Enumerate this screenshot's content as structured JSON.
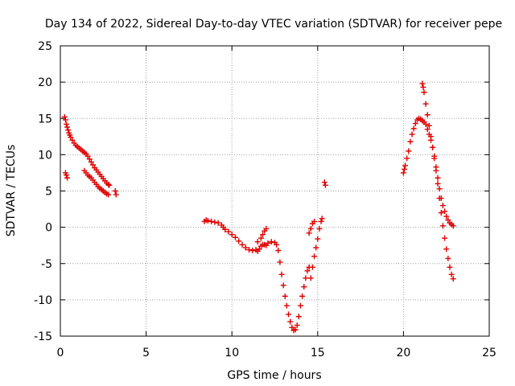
{
  "chart_data": {
    "type": "scatter",
    "title": "Day 134 of 2022, Sidereal Day-to-day VTEC variation (SDTVAR) for receiver pepe",
    "xlabel": "GPS time / hours",
    "ylabel": "SDTVAR / TECUs",
    "xlim": [
      0,
      25
    ],
    "ylim": [
      -15,
      25
    ],
    "xticks": [
      "0",
      "5",
      "10",
      "15",
      "20",
      "25"
    ],
    "yticks": [
      "25",
      "20",
      "15",
      "10",
      "5",
      "0",
      "-5",
      "-10",
      "-15"
    ],
    "grid": true,
    "marker": "plus",
    "color": "#e00000",
    "series": [
      {
        "points": [
          [
            0.25,
            15.2
          ],
          [
            0.3,
            14.8
          ],
          [
            0.35,
            14.2
          ],
          [
            0.4,
            13.8
          ],
          [
            0.45,
            13.4
          ],
          [
            0.5,
            13.0
          ],
          [
            0.55,
            12.7
          ],
          [
            0.6,
            12.4
          ],
          [
            0.7,
            12.0
          ],
          [
            0.8,
            11.6
          ],
          [
            0.9,
            11.3
          ],
          [
            1.0,
            11.1
          ],
          [
            1.1,
            10.9
          ],
          [
            1.2,
            10.7
          ],
          [
            1.3,
            10.5
          ],
          [
            1.4,
            10.3
          ],
          [
            1.5,
            10.1
          ],
          [
            1.6,
            9.8
          ],
          [
            1.7,
            9.4
          ],
          [
            1.8,
            9.0
          ],
          [
            1.9,
            8.6
          ],
          [
            2.0,
            8.2
          ],
          [
            2.1,
            7.9
          ],
          [
            2.2,
            7.6
          ],
          [
            2.3,
            7.3
          ],
          [
            2.4,
            7.0
          ],
          [
            2.5,
            6.7
          ],
          [
            2.6,
            6.4
          ],
          [
            2.7,
            6.1
          ],
          [
            2.8,
            5.9
          ],
          [
            2.85,
            5.8
          ],
          [
            0.3,
            7.5
          ],
          [
            0.35,
            7.2
          ],
          [
            0.4,
            6.8
          ],
          [
            1.4,
            7.8
          ],
          [
            1.5,
            7.5
          ],
          [
            1.6,
            7.2
          ],
          [
            1.7,
            7.0
          ],
          [
            1.8,
            6.8
          ],
          [
            1.9,
            6.5
          ],
          [
            2.0,
            6.2
          ],
          [
            2.1,
            5.9
          ],
          [
            2.2,
            5.6
          ],
          [
            2.3,
            5.4
          ],
          [
            2.4,
            5.2
          ],
          [
            2.5,
            5.0
          ],
          [
            2.6,
            4.8
          ],
          [
            2.7,
            4.6
          ],
          [
            2.8,
            4.5
          ],
          [
            3.2,
            5.0
          ],
          [
            3.25,
            4.5
          ],
          [
            8.4,
            0.8
          ],
          [
            8.5,
            1.0
          ],
          [
            8.6,
            0.9
          ],
          [
            8.8,
            0.8
          ],
          [
            9.0,
            0.7
          ],
          [
            9.2,
            0.6
          ],
          [
            9.4,
            0.3
          ],
          [
            9.5,
            0.0
          ],
          [
            9.6,
            -0.3
          ],
          [
            9.8,
            -0.6
          ],
          [
            10.0,
            -1.0
          ],
          [
            10.2,
            -1.4
          ],
          [
            10.4,
            -1.9
          ],
          [
            10.6,
            -2.4
          ],
          [
            10.8,
            -2.8
          ],
          [
            11.0,
            -3.1
          ],
          [
            11.2,
            -3.2
          ],
          [
            11.4,
            -3.1
          ],
          [
            11.5,
            -3.3
          ],
          [
            11.6,
            -3.0
          ],
          [
            11.7,
            -2.6
          ],
          [
            11.8,
            -2.4
          ],
          [
            11.9,
            -2.4
          ],
          [
            12.0,
            -2.5
          ],
          [
            12.1,
            -2.2
          ],
          [
            12.3,
            -2.0
          ],
          [
            12.5,
            -2.1
          ],
          [
            12.6,
            -2.4
          ],
          [
            12.7,
            -3.2
          ],
          [
            12.8,
            -4.8
          ],
          [
            12.9,
            -6.5
          ],
          [
            13.0,
            -8.0
          ],
          [
            13.1,
            -9.5
          ],
          [
            13.2,
            -10.8
          ],
          [
            13.3,
            -12.0
          ],
          [
            13.4,
            -13.0
          ],
          [
            13.5,
            -13.8
          ],
          [
            13.6,
            -14.2
          ],
          [
            13.7,
            -14.1
          ],
          [
            13.8,
            -13.5
          ],
          [
            13.9,
            -12.3
          ],
          [
            14.0,
            -10.8
          ],
          [
            14.1,
            -9.5
          ],
          [
            14.2,
            -8.2
          ],
          [
            14.3,
            -7.0
          ],
          [
            14.4,
            -6.0
          ],
          [
            14.5,
            -5.5
          ],
          [
            11.5,
            -2.0
          ],
          [
            11.7,
            -1.5
          ],
          [
            11.8,
            -1.0
          ],
          [
            11.9,
            -0.5
          ],
          [
            12.0,
            -0.2
          ],
          [
            14.5,
            -0.8
          ],
          [
            14.6,
            -0.2
          ],
          [
            14.7,
            0.5
          ],
          [
            14.8,
            0.8
          ],
          [
            14.6,
            -7.0
          ],
          [
            14.7,
            -5.5
          ],
          [
            14.8,
            -4.0
          ],
          [
            14.9,
            -2.8
          ],
          [
            15.0,
            -1.6
          ],
          [
            15.1,
            -0.2
          ],
          [
            15.2,
            0.8
          ],
          [
            15.25,
            1.2
          ],
          [
            15.4,
            6.2
          ],
          [
            15.45,
            5.8
          ],
          [
            20.0,
            7.5
          ],
          [
            20.05,
            8.0
          ],
          [
            20.1,
            8.5
          ],
          [
            20.2,
            9.5
          ],
          [
            20.3,
            10.5
          ],
          [
            20.4,
            11.8
          ],
          [
            20.5,
            12.8
          ],
          [
            20.6,
            13.6
          ],
          [
            20.7,
            14.3
          ],
          [
            20.8,
            14.8
          ],
          [
            20.9,
            15.0
          ],
          [
            21.0,
            14.9
          ],
          [
            21.1,
            14.7
          ],
          [
            21.2,
            14.5
          ],
          [
            21.3,
            14.2
          ],
          [
            21.4,
            13.5
          ],
          [
            21.5,
            12.8
          ],
          [
            21.6,
            12.0
          ],
          [
            21.7,
            11.0
          ],
          [
            21.8,
            9.8
          ],
          [
            21.9,
            8.3
          ],
          [
            22.0,
            6.8
          ],
          [
            22.1,
            5.3
          ],
          [
            22.2,
            4.0
          ],
          [
            22.3,
            3.0
          ],
          [
            22.4,
            2.2
          ],
          [
            22.5,
            1.5
          ],
          [
            22.6,
            1.0
          ],
          [
            22.7,
            0.6
          ],
          [
            22.8,
            0.4
          ],
          [
            22.9,
            0.2
          ],
          [
            21.1,
            19.8
          ],
          [
            21.15,
            19.3
          ],
          [
            21.2,
            18.6
          ],
          [
            21.3,
            17.0
          ],
          [
            21.4,
            15.5
          ],
          [
            21.5,
            14.0
          ],
          [
            21.6,
            12.5
          ],
          [
            21.7,
            11.0
          ],
          [
            21.8,
            9.5
          ],
          [
            21.9,
            7.8
          ],
          [
            22.0,
            6.0
          ],
          [
            22.1,
            4.0
          ],
          [
            22.2,
            2.0
          ],
          [
            22.3,
            0.2
          ],
          [
            22.4,
            -1.5
          ],
          [
            22.5,
            -3.0
          ],
          [
            22.6,
            -4.3
          ],
          [
            22.7,
            -5.5
          ],
          [
            22.8,
            -6.5
          ],
          [
            22.9,
            -7.1
          ]
        ]
      }
    ]
  }
}
